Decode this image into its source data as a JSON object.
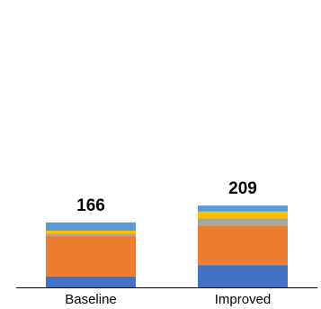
{
  "chart_data": {
    "type": "stacked_bar",
    "categories": [
      "Baseline",
      "Improved"
    ],
    "series": [
      {
        "color": "#4472c4",
        "values": [
          28,
          57
        ]
      },
      {
        "color": "#ed7d31",
        "values": [
          104,
          101
        ]
      },
      {
        "color": "#a5a5a5",
        "values": [
          5,
          18
        ]
      },
      {
        "color": "#ffc000",
        "values": [
          8,
          18
        ]
      },
      {
        "color": "#5b9bd5",
        "values": [
          21,
          15
        ]
      }
    ],
    "totals": [
      166,
      209
    ],
    "ylim": [
      0,
      700
    ]
  }
}
